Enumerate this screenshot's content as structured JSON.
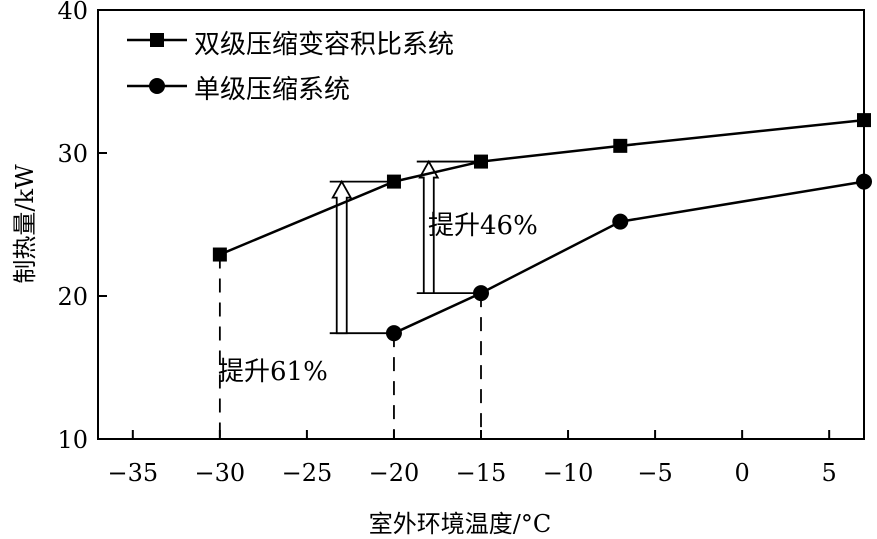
{
  "chart_data": {
    "type": "line",
    "xlabel": "室外环境温度/°C",
    "ylabel": "制热量/kW",
    "xlim": [
      -37,
      7
    ],
    "ylim": [
      10,
      40
    ],
    "x_ticks": [
      -35,
      -30,
      -25,
      -20,
      -15,
      -10,
      -5,
      0,
      5
    ],
    "x_tick_labels": [
      "−35",
      "−30",
      "−25",
      "−20",
      "−15",
      "−10",
      "−5",
      "0",
      "5"
    ],
    "y_ticks": [
      10,
      20,
      30,
      40
    ],
    "y_tick_labels": [
      "10",
      "20",
      "30",
      "40"
    ],
    "grid": false,
    "legend_position": "top-left",
    "series": [
      {
        "name": "双级压缩变容积比系统",
        "marker": "square",
        "x": [
          -30,
          -20,
          -15,
          -7,
          7
        ],
        "y": [
          22.9,
          28.0,
          29.4,
          30.5,
          32.3
        ]
      },
      {
        "name": "单级压缩系统",
        "marker": "circle",
        "x": [
          -20,
          -15,
          -7,
          7
        ],
        "y": [
          17.4,
          20.2,
          25.2,
          28.0
        ]
      }
    ],
    "annotations": [
      {
        "text": "提升61%",
        "x": -23,
        "y_from": 17.4,
        "y_to": 28.0
      },
      {
        "text": "提升46%",
        "x": -18,
        "y_from": 20.2,
        "y_to": 29.4
      }
    ],
    "dashed_drops": [
      {
        "x": -30,
        "y": 22.9
      },
      {
        "x": -20,
        "y": 17.4
      },
      {
        "x": -15,
        "y": 20.2
      }
    ]
  }
}
